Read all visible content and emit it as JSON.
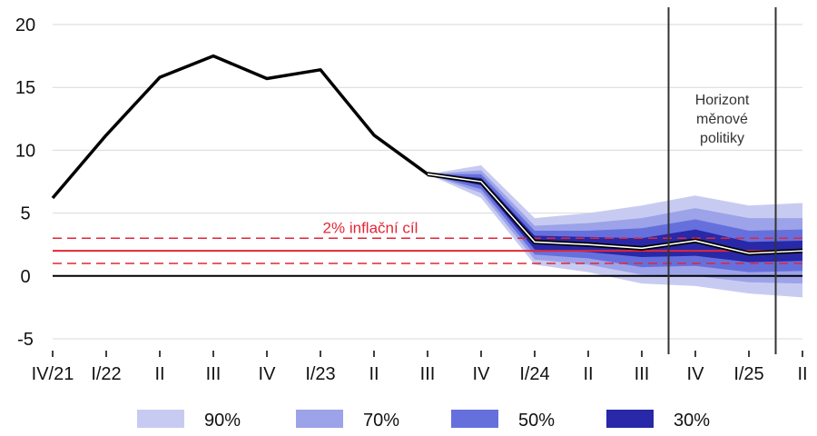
{
  "chart_data": {
    "type": "area",
    "categories": [
      "IV/21",
      "I/22",
      "II",
      "III",
      "IV",
      "I/23",
      "II",
      "III",
      "IV",
      "I/24",
      "II",
      "III",
      "IV",
      "I/25",
      "II"
    ],
    "ylim": [
      -5,
      20
    ],
    "yticks": [
      -5,
      0,
      5,
      10,
      15,
      20
    ],
    "grid": true,
    "series": [
      {
        "values": [
          6.2,
          11.2,
          15.8,
          17.5,
          15.7,
          16.4,
          11.2,
          8.1,
          7.5,
          2.7,
          2.5,
          2.2,
          2.8,
          1.8,
          2.0
        ]
      }
    ],
    "fan_start_index": 7,
    "fan_bands": [
      {
        "name": "90%",
        "lower": [
          8.1,
          6.2,
          0.9,
          0.3,
          -0.6,
          -0.8,
          -1.4,
          -1.7
        ],
        "upper": [
          8.1,
          8.8,
          4.6,
          5.0,
          5.6,
          6.4,
          5.6,
          5.8
        ],
        "color": "#c8cbf1"
      },
      {
        "name": "70%",
        "lower": [
          8.1,
          6.6,
          1.3,
          0.9,
          0.1,
          0.0,
          -0.5,
          -0.6
        ],
        "upper": [
          8.1,
          8.4,
          4.0,
          4.2,
          4.6,
          5.4,
          4.6,
          4.6
        ],
        "color": "#9ca3e8"
      },
      {
        "name": "50%",
        "lower": [
          8.1,
          6.9,
          1.7,
          1.4,
          0.7,
          0.8,
          0.3,
          0.4
        ],
        "upper": [
          8.1,
          8.1,
          3.6,
          3.6,
          3.8,
          4.5,
          3.6,
          3.7
        ],
        "color": "#6670dd"
      },
      {
        "name": "30%",
        "lower": [
          8.1,
          7.2,
          2.1,
          1.9,
          1.5,
          1.6,
          1.1,
          1.2
        ],
        "upper": [
          8.1,
          7.8,
          3.2,
          3.1,
          3.0,
          3.7,
          2.7,
          2.8
        ],
        "color": "#2828a8"
      }
    ],
    "target": {
      "label": "2% inflační cíl",
      "value": 2,
      "band": [
        1,
        3
      ],
      "color": "#e32636"
    },
    "zero_line": 0,
    "policy_horizon": {
      "label_lines": [
        "Horizont",
        "měnové",
        "politiky"
      ],
      "from_x": 11.5,
      "to_x": 13.5
    },
    "legend": [
      "90%",
      "70%",
      "50%",
      "30%"
    ],
    "legend_position": "bottom"
  }
}
